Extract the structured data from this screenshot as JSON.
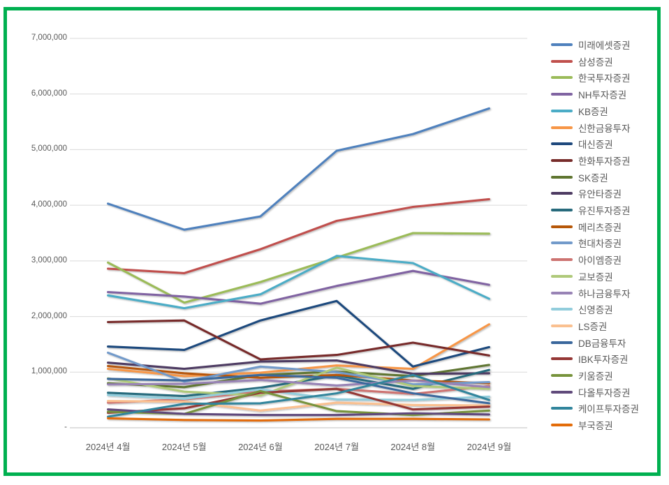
{
  "figure": {
    "border_color": "#00B050",
    "background_color": "#FFFFFF",
    "axis_text_color": "#595959",
    "gridline_color": "#D9D9D9",
    "axis_line_color": "#BFBFBF"
  },
  "chart_data": {
    "type": "line",
    "title": "",
    "xlabel": "",
    "ylabel": "",
    "grid": true,
    "legend_position": "right",
    "ylim": [
      0,
      7000000
    ],
    "ytick_interval": 1000000,
    "ytick_labels": [
      "7,000,000",
      "6,000,000",
      "5,000,000",
      "4,000,000",
      "3,000,000",
      "2,000,000",
      "1,000,000",
      "-"
    ],
    "categories": [
      "2024년 4월",
      "2024년 5월",
      "2024년 6월",
      "2024년 7월",
      "2024년 8월",
      "2024년 9월"
    ],
    "series": [
      {
        "name": "미래에셋증권",
        "color": "#4F81BD",
        "values": [
          4030000,
          3560000,
          3800000,
          4980000,
          5280000,
          5740000
        ]
      },
      {
        "name": "삼성증권",
        "color": "#C0504D",
        "values": [
          2860000,
          2780000,
          3210000,
          3720000,
          3970000,
          4110000
        ]
      },
      {
        "name": "한국투자증권",
        "color": "#9BBB59",
        "values": [
          2970000,
          2250000,
          2620000,
          3060000,
          3500000,
          3490000
        ]
      },
      {
        "name": "NH투자증권",
        "color": "#8064A2",
        "values": [
          2440000,
          2360000,
          2230000,
          2550000,
          2820000,
          2570000
        ]
      },
      {
        "name": "KB증권",
        "color": "#4BACC6",
        "values": [
          2380000,
          2150000,
          2400000,
          3090000,
          2960000,
          2320000
        ]
      },
      {
        "name": "신한금융투자",
        "color": "#F79646",
        "values": [
          1060000,
          930000,
          990000,
          1120000,
          1060000,
          1860000
        ]
      },
      {
        "name": "대신증권",
        "color": "#1F497D",
        "values": [
          1460000,
          1400000,
          1930000,
          2280000,
          1100000,
          1450000
        ]
      },
      {
        "name": "한화투자증권",
        "color": "#772C2A",
        "values": [
          1900000,
          1930000,
          1230000,
          1310000,
          1530000,
          1300000
        ]
      },
      {
        "name": "SK증권",
        "color": "#5F7530",
        "values": [
          800000,
          730000,
          950000,
          1010000,
          930000,
          1130000
        ]
      },
      {
        "name": "유안타증권",
        "color": "#4D3B62",
        "values": [
          1170000,
          1060000,
          1190000,
          1210000,
          970000,
          980000
        ]
      },
      {
        "name": "유진투자증권",
        "color": "#276A7C",
        "values": [
          630000,
          570000,
          720000,
          940000,
          700000,
          1040000
        ]
      },
      {
        "name": "메리츠증권",
        "color": "#B65708",
        "values": [
          1110000,
          980000,
          900000,
          950000,
          850000,
          800000
        ]
      },
      {
        "name": "현대차증권",
        "color": "#729ACA",
        "values": [
          1350000,
          830000,
          1100000,
          1000000,
          780000,
          820000
        ]
      },
      {
        "name": "아이엠증권",
        "color": "#CD7371",
        "values": [
          450000,
          510000,
          650000,
          700000,
          610000,
          750000
        ]
      },
      {
        "name": "교보증권",
        "color": "#AFC97A",
        "values": [
          890000,
          650000,
          580000,
          1080000,
          750000,
          700000
        ]
      },
      {
        "name": "하나금융투자",
        "color": "#9883B5",
        "values": [
          780000,
          790000,
          860000,
          760000,
          850000,
          730000
        ]
      },
      {
        "name": "신영증권",
        "color": "#92CDDC",
        "values": [
          590000,
          520000,
          690000,
          510000,
          500000,
          560000
        ]
      },
      {
        "name": "LS증권",
        "color": "#FAC090",
        "values": [
          480000,
          470000,
          310000,
          450000,
          410000,
          400000
        ]
      },
      {
        "name": "DB금융투자",
        "color": "#3A679C",
        "values": [
          880000,
          850000,
          950000,
          900000,
          620000,
          440000
        ]
      },
      {
        "name": "IBK투자증권",
        "color": "#953735",
        "values": [
          270000,
          350000,
          630000,
          700000,
          330000,
          380000
        ]
      },
      {
        "name": "키움증권",
        "color": "#77933C",
        "values": [
          290000,
          250000,
          660000,
          300000,
          230000,
          310000
        ]
      },
      {
        "name": "다올투자증권",
        "color": "#604A7B",
        "values": [
          330000,
          250000,
          230000,
          230000,
          260000,
          240000
        ]
      },
      {
        "name": "케이프투자증권",
        "color": "#31859C",
        "values": [
          200000,
          430000,
          440000,
          620000,
          950000,
          500000
        ]
      },
      {
        "name": "부국증권",
        "color": "#E36C09",
        "values": [
          170000,
          140000,
          130000,
          160000,
          160000,
          150000
        ]
      }
    ]
  }
}
